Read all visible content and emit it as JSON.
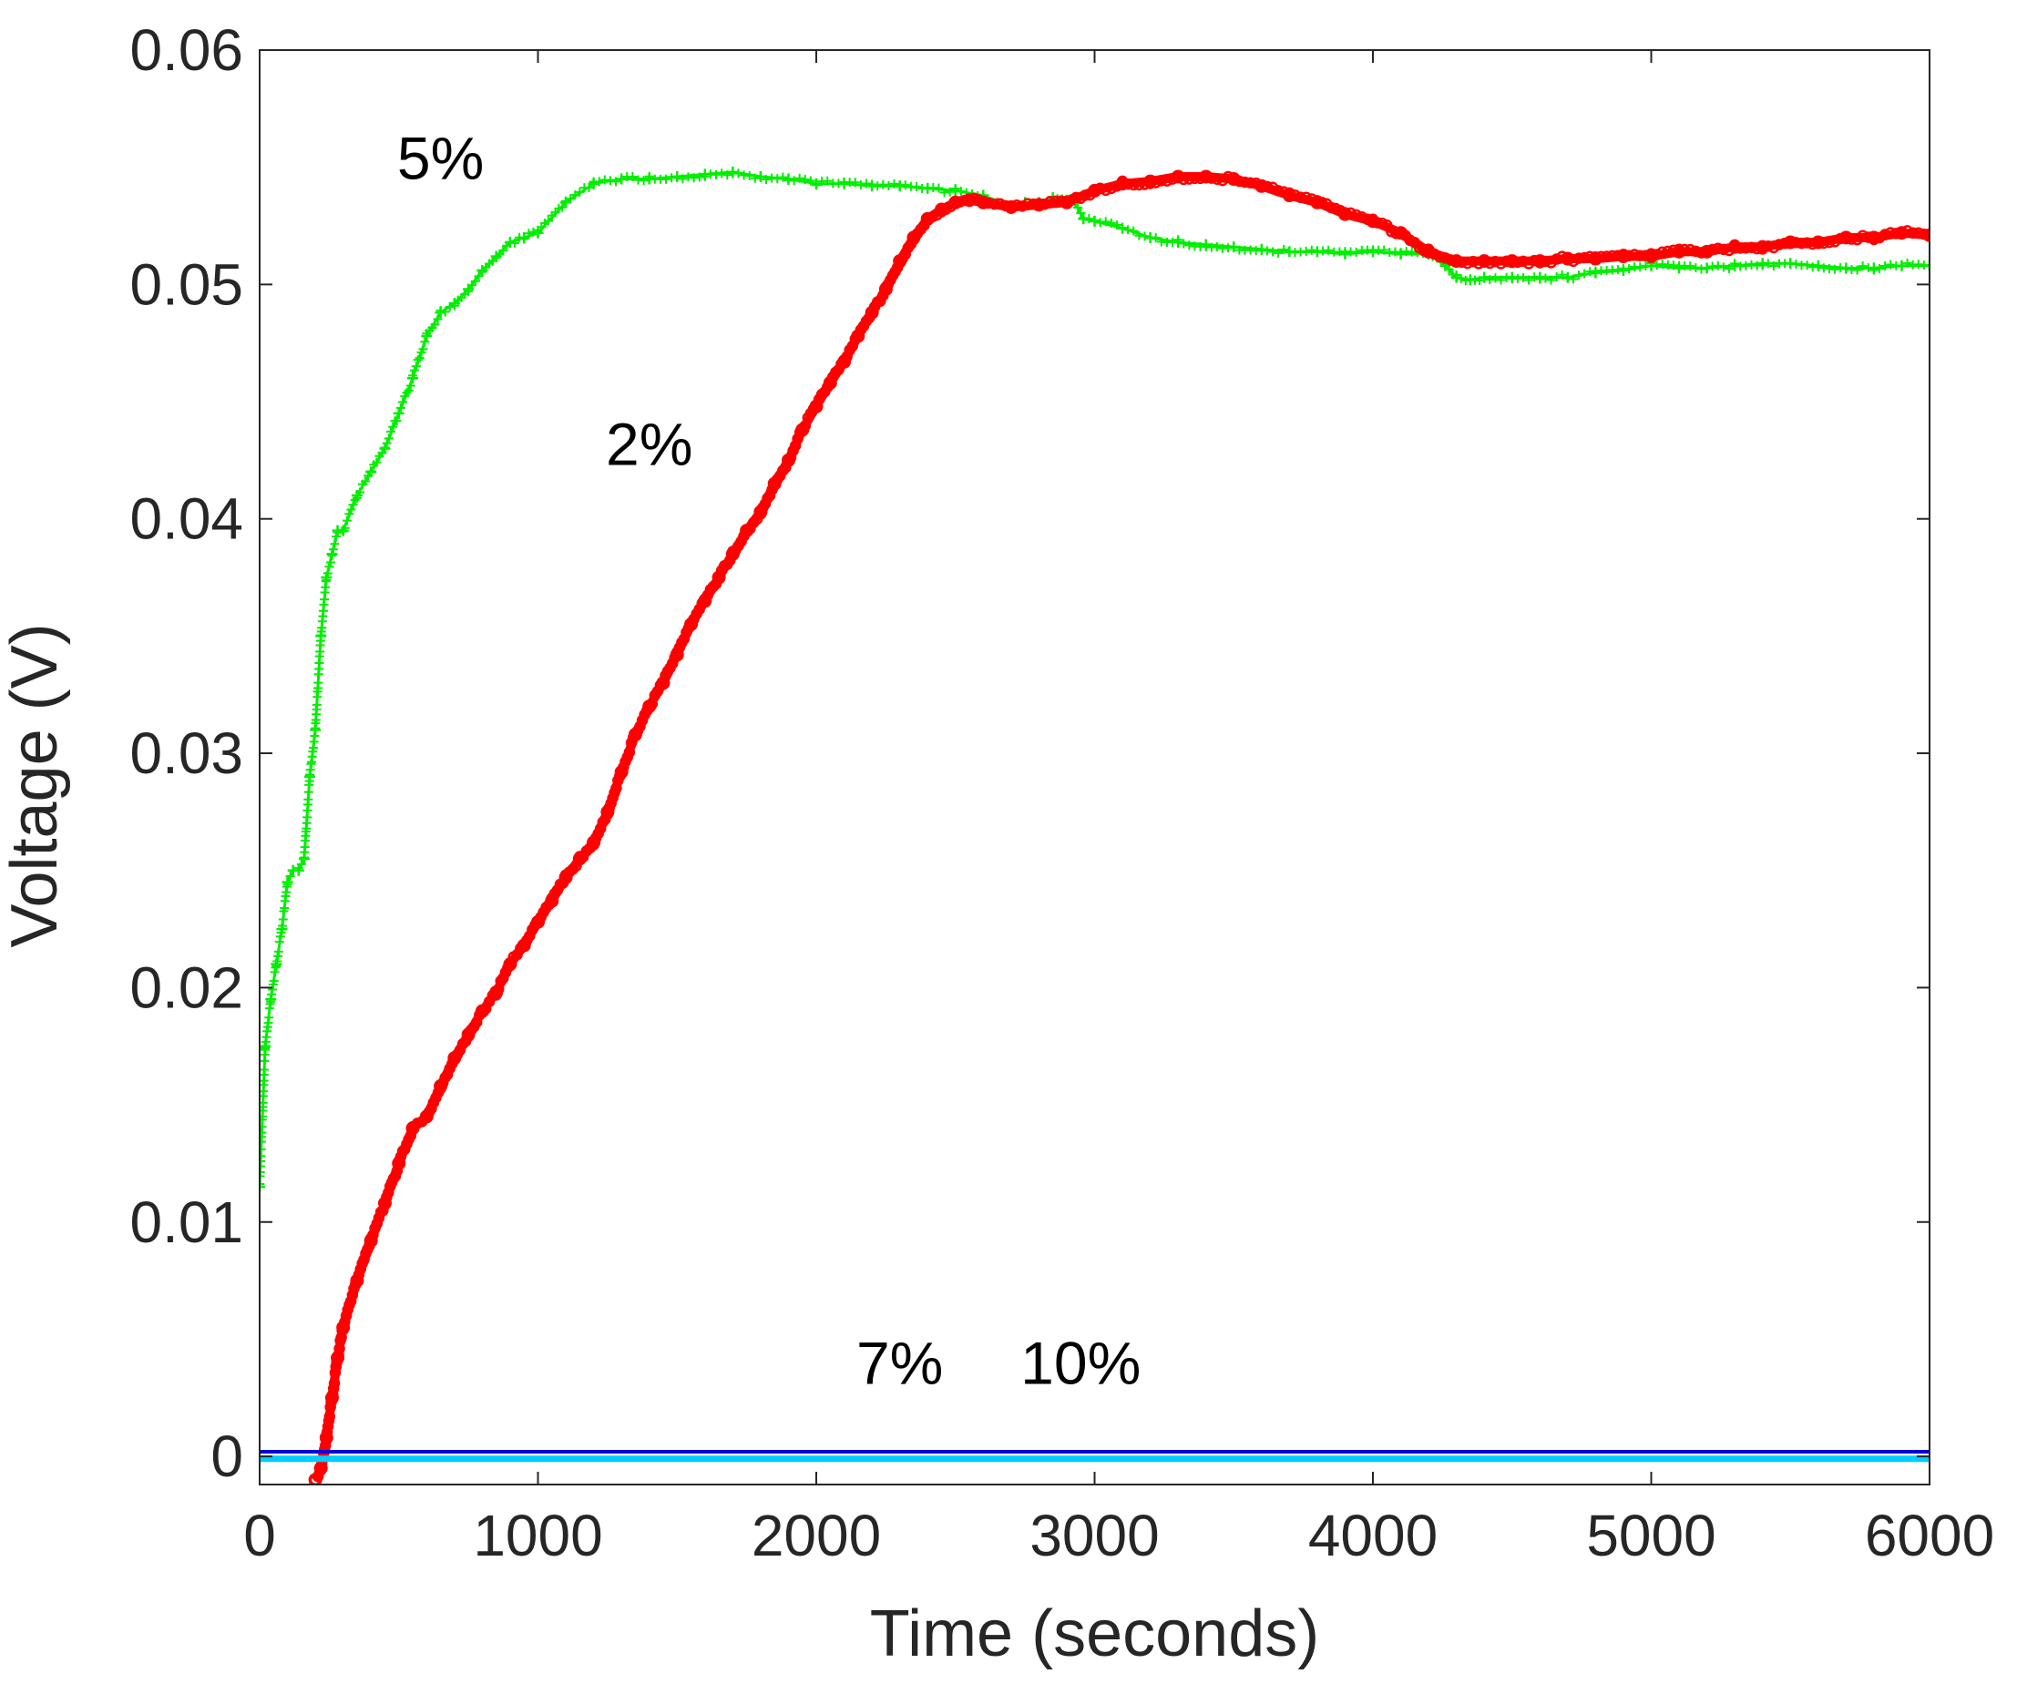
{
  "chart_data": {
    "type": "line",
    "title": "",
    "xlabel": "Time (seconds)",
    "ylabel": "Voltage (V)",
    "xlim": [
      0,
      6000
    ],
    "ylim": [
      -0.0012,
      0.06
    ],
    "xticks": [
      0,
      1000,
      2000,
      3000,
      4000,
      5000,
      6000
    ],
    "xtick_labels": [
      "0",
      "1000",
      "2000",
      "3000",
      "4000",
      "5000",
      "6000"
    ],
    "yticks": [
      0,
      0.01,
      0.02,
      0.03,
      0.04,
      0.05,
      0.06
    ],
    "ytick_labels": [
      "0",
      "0.01",
      "0.02",
      "0.03",
      "0.04",
      "0.05",
      "0.06"
    ],
    "grid": false,
    "legend": "none",
    "series": [
      {
        "name": "5%",
        "color": "#00ee00",
        "marker": "plus",
        "x": [
          0,
          20,
          40,
          60,
          80,
          100,
          120,
          140,
          160,
          180,
          200,
          220,
          240,
          260,
          280,
          300,
          350,
          400,
          450,
          500,
          550,
          600,
          650,
          700,
          750,
          800,
          850,
          900,
          950,
          1000,
          1100,
          1200,
          1300,
          1400,
          1500,
          1600,
          1700,
          1800,
          1900,
          2000,
          2100,
          2200,
          2300,
          2400,
          2500,
          2600,
          2700,
          2750,
          2800,
          2850,
          2900,
          2930,
          2960,
          3000,
          3100,
          3200,
          3300,
          3400,
          3500,
          3600,
          3700,
          3800,
          3900,
          4000,
          4100,
          4200,
          4260,
          4300,
          4350,
          4400,
          4500,
          4600,
          4700,
          4800,
          4900,
          5000,
          5100,
          5200,
          5300,
          5400,
          5500,
          5600,
          5700,
          5800,
          5900,
          6000
        ],
        "y": [
          0.0115,
          0.0175,
          0.0195,
          0.021,
          0.0225,
          0.0245,
          0.025,
          0.025,
          0.0255,
          0.029,
          0.031,
          0.035,
          0.0375,
          0.0385,
          0.0395,
          0.0395,
          0.041,
          0.042,
          0.043,
          0.0445,
          0.046,
          0.0478,
          0.0488,
          0.0492,
          0.0498,
          0.0506,
          0.0512,
          0.0518,
          0.052,
          0.0522,
          0.0535,
          0.0543,
          0.0545,
          0.0545,
          0.0546,
          0.0547,
          0.0548,
          0.0546,
          0.0545,
          0.0543,
          0.0543,
          0.0542,
          0.0542,
          0.0541,
          0.054,
          0.0538,
          0.0533,
          0.0535,
          0.0535,
          0.0537,
          0.0536,
          0.0535,
          0.0528,
          0.0527,
          0.0524,
          0.052,
          0.0518,
          0.0517,
          0.0516,
          0.0515,
          0.0514,
          0.0514,
          0.0513,
          0.0514,
          0.0513,
          0.0513,
          0.0508,
          0.0503,
          0.0502,
          0.0503,
          0.0503,
          0.0503,
          0.0503,
          0.0505,
          0.0506,
          0.0508,
          0.0507,
          0.0507,
          0.0508,
          0.0509,
          0.0509,
          0.0508,
          0.0507,
          0.0507,
          0.0508,
          0.0508
        ]
      },
      {
        "name": "2%",
        "color": "#ff0000",
        "marker": "circle",
        "x": [
          200,
          220,
          240,
          260,
          280,
          300,
          350,
          400,
          450,
          500,
          550,
          600,
          650,
          700,
          750,
          800,
          850,
          900,
          950,
          1000,
          1050,
          1100,
          1150,
          1200,
          1250,
          1300,
          1350,
          1400,
          1450,
          1500,
          1550,
          1600,
          1650,
          1700,
          1750,
          1800,
          1850,
          1900,
          1950,
          2000,
          2050,
          2100,
          2150,
          2200,
          2250,
          2300,
          2350,
          2400,
          2450,
          2500,
          2550,
          2600,
          2700,
          2800,
          2900,
          3000,
          3100,
          3200,
          3300,
          3400,
          3500,
          3600,
          3700,
          3800,
          3900,
          4000,
          4100,
          4200,
          4300,
          4400,
          4500,
          4600,
          4700,
          4800,
          4900,
          5000,
          5100,
          5200,
          5300,
          5400,
          5500,
          5600,
          5700,
          5800,
          5900,
          6000
        ],
        "y": [
          -0.001,
          -0.0005,
          0.0008,
          0.0025,
          0.0042,
          0.0055,
          0.0075,
          0.0092,
          0.0108,
          0.0125,
          0.014,
          0.0145,
          0.0158,
          0.017,
          0.018,
          0.019,
          0.0198,
          0.021,
          0.0218,
          0.0228,
          0.0237,
          0.0247,
          0.0255,
          0.0262,
          0.0275,
          0.0292,
          0.0308,
          0.032,
          0.033,
          0.0342,
          0.0355,
          0.0365,
          0.0375,
          0.0385,
          0.0395,
          0.0403,
          0.0415,
          0.0425,
          0.0438,
          0.0448,
          0.0458,
          0.0467,
          0.0478,
          0.0488,
          0.0498,
          0.051,
          0.052,
          0.0528,
          0.0532,
          0.0535,
          0.0536,
          0.0535,
          0.0533,
          0.0534,
          0.0535,
          0.054,
          0.0543,
          0.0544,
          0.0546,
          0.0546,
          0.0545,
          0.0542,
          0.0538,
          0.0535,
          0.053,
          0.0527,
          0.0522,
          0.0514,
          0.051,
          0.051,
          0.051,
          0.051,
          0.0511,
          0.0511,
          0.0512,
          0.0512,
          0.0514,
          0.0514,
          0.0516,
          0.0516,
          0.0518,
          0.0518,
          0.052,
          0.052,
          0.0522,
          0.0521
        ]
      },
      {
        "name": "7%",
        "color": "#0000dd",
        "marker": "none",
        "x": [
          0,
          6000
        ],
        "y": [
          0.0002,
          0.0002
        ]
      },
      {
        "name": "10%",
        "color": "#00ccff",
        "marker": "none",
        "x": [
          0,
          6000
        ],
        "y": [
          -0.0001,
          -0.0001
        ]
      }
    ],
    "annotations": [
      {
        "text": "5%",
        "x": 650,
        "y": 0.0545
      },
      {
        "text": "2%",
        "x": 1400,
        "y": 0.0423
      },
      {
        "text": "7%",
        "x": 2300,
        "y": 0.0031
      },
      {
        "text": "10%",
        "x": 2950,
        "y": 0.0031
      }
    ]
  }
}
